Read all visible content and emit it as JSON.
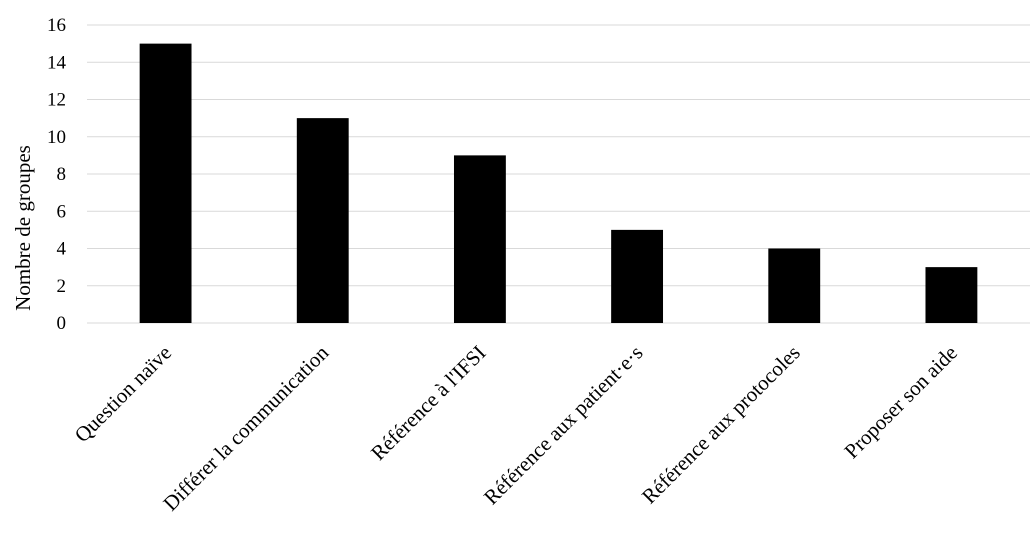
{
  "chart_data": {
    "type": "bar",
    "title": "",
    "xlabel": "",
    "ylabel": "Nombre de groupes",
    "ylim": [
      0,
      16
    ],
    "yticks": [
      0,
      2,
      4,
      6,
      8,
      10,
      12,
      14,
      16
    ],
    "grid": true,
    "legend": "none",
    "bar_color": "#000000",
    "grid_color": "#d9d9d9",
    "categories": [
      "Question naïve",
      "Différer la communication",
      "Référence à l'IFSI",
      "Référence aux patient·e·s",
      "Référence aux protocoles",
      "Proposer son aide"
    ],
    "values": [
      15,
      11,
      9,
      5,
      4,
      3
    ]
  }
}
